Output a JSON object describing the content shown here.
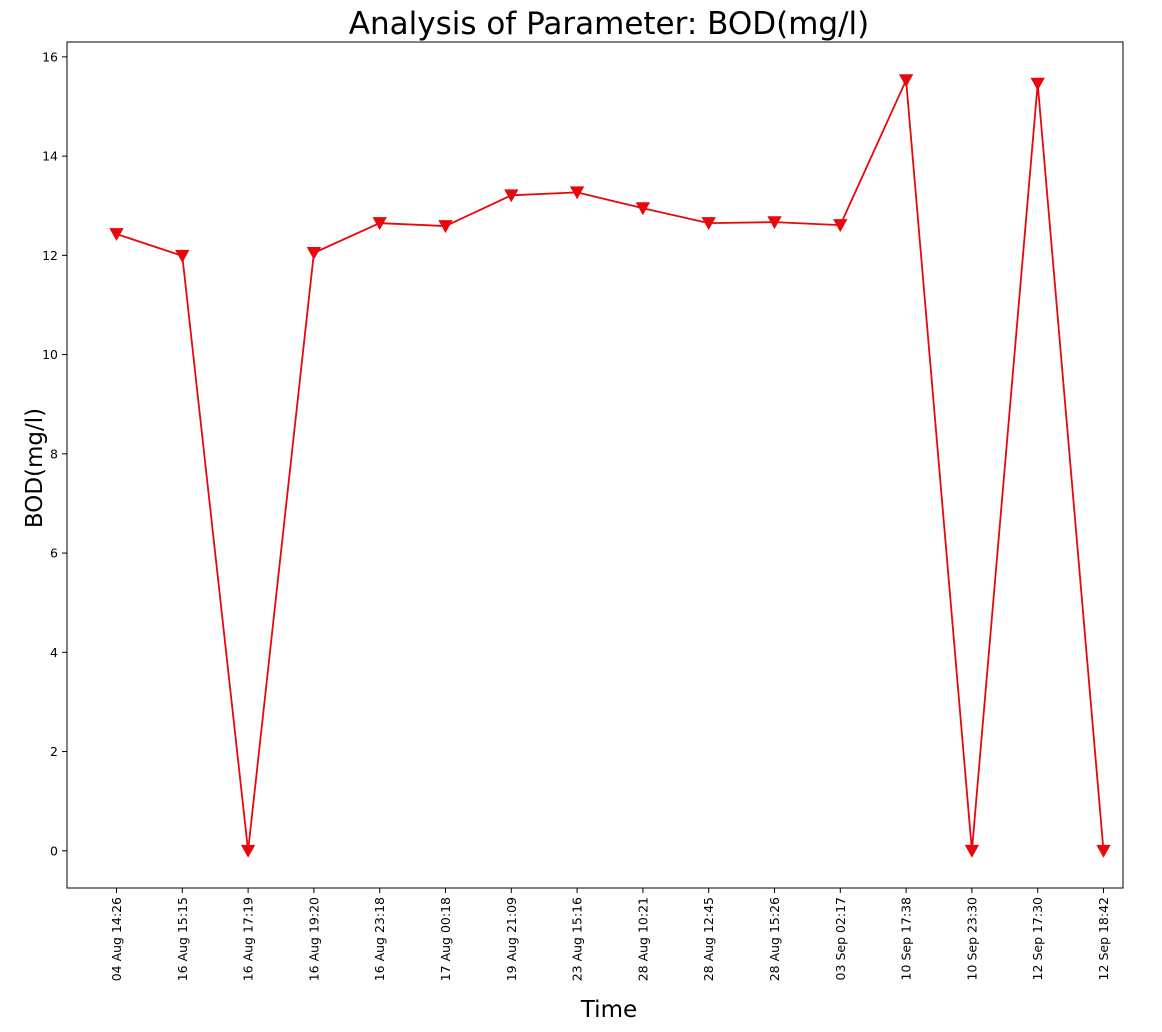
{
  "chart_data": {
    "type": "line",
    "title": "Analysis of Parameter: BOD(mg/l)",
    "xlabel": "Time",
    "ylabel": "BOD(mg/l)",
    "categories": [
      "04 Aug 14:26",
      "16 Aug 15:15",
      "16 Aug 17:19",
      "16 Aug 19:20",
      "16 Aug 23:18",
      "17 Aug 00:18",
      "19 Aug 21:09",
      "23 Aug 15:16",
      "28 Aug 10:21",
      "28 Aug 12:45",
      "28 Aug 15:26",
      "03 Sep 02:17",
      "10 Sep 17:38",
      "10 Sep 23:30",
      "12 Sep 17:30",
      "12 Sep 18:42"
    ],
    "series": [
      {
        "values": [
          12.43,
          11.99,
          0,
          12.05,
          12.65,
          12.59,
          13.21,
          13.27,
          12.95,
          12.65,
          12.67,
          12.61,
          15.53,
          0,
          15.46,
          0
        ],
        "color": "#e8080c",
        "marker": "triangle-down"
      }
    ],
    "ylim": [
      -0.75,
      16.3
    ],
    "yticks": [
      0,
      2,
      4,
      6,
      8,
      10,
      12,
      14,
      16
    ],
    "grid": false,
    "legend": "none"
  }
}
